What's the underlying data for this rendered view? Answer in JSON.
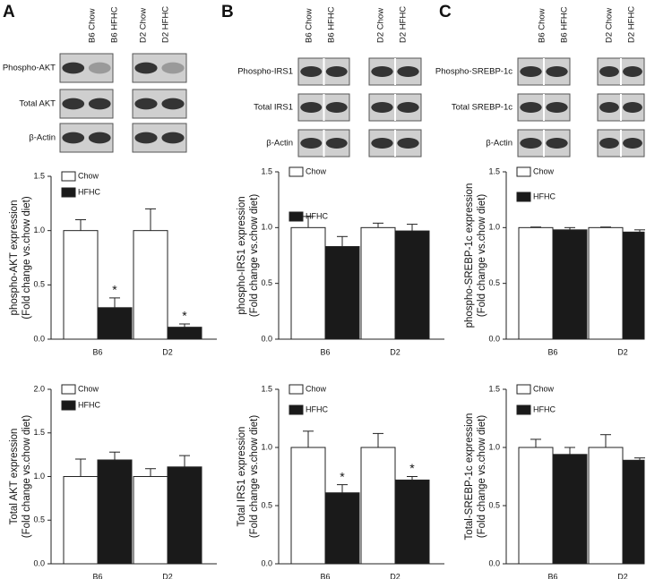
{
  "panels": [
    {
      "letter": "A",
      "lanes": [
        "B6 Chow",
        "B6 HFHC",
        "D2 Chow",
        "D2 HFHC"
      ],
      "blots": [
        "Phospho-AKT",
        "Total AKT",
        "β-Actin"
      ]
    },
    {
      "letter": "B",
      "lanes": [
        "B6 Chow",
        "B6 HFHC",
        "D2 Chow",
        "D2 HFHC"
      ],
      "blots": [
        "Phospho-IRS1",
        "Total IRS1",
        "β-Actin"
      ]
    },
    {
      "letter": "C",
      "lanes": [
        "B6 Chow",
        "B6 HFHC",
        "D2 Chow",
        "D2 HFHC"
      ],
      "blots": [
        "Phospho-SREBP-1c",
        "Total SREBP-1c",
        "β-Actin"
      ]
    }
  ],
  "chart_data": [
    {
      "type": "bar",
      "ylabel": [
        "phospho-AKT expression",
        "(Fold change vs.chow diet)"
      ],
      "categories": [
        "B6",
        "D2"
      ],
      "series": [
        {
          "name": "Chow",
          "color": "#ffffff",
          "values": [
            1.0,
            1.0
          ],
          "errors": [
            0.1,
            0.2
          ]
        },
        {
          "name": "HFHC",
          "color": "#1a1a1a",
          "values": [
            0.29,
            0.11
          ],
          "errors": [
            0.09,
            0.03
          ],
          "markers": [
            "*",
            "*"
          ]
        }
      ],
      "ylim": [
        0,
        1.5
      ],
      "yticks": [
        {
          "value": 0,
          "label": "0.0"
        },
        0.5,
        {
          "value": 1,
          "label": "1.0"
        },
        1.5
      ]
    },
    {
      "type": "bar",
      "ylabel": [
        "Total AKT expression",
        "(Fold change vs.chow diet)"
      ],
      "categories": [
        "B6",
        "D2"
      ],
      "series": [
        {
          "name": "Chow",
          "color": "#ffffff",
          "values": [
            1.0,
            1.0
          ],
          "errors": [
            0.2,
            0.09
          ]
        },
        {
          "name": "HFHC",
          "color": "#1a1a1a",
          "values": [
            1.19,
            1.11
          ],
          "errors": [
            0.09,
            0.13
          ]
        }
      ],
      "ylim": [
        0,
        2
      ],
      "yticks": [
        {
          "value": 0,
          "label": "0.0"
        },
        0.5,
        {
          "value": 1,
          "label": "1.0"
        },
        1.5,
        {
          "value": 2,
          "label": "2.0"
        }
      ]
    },
    {
      "type": "bar",
      "ylabel": [
        "phospho-IRS1 expression",
        "(Fold change vs.chow diet)"
      ],
      "categories": [
        "B6",
        "D2"
      ],
      "series": [
        {
          "name": "Chow",
          "color": "#ffffff",
          "values": [
            1.0,
            1.0
          ],
          "errors": [
            0.1,
            0.04
          ]
        },
        {
          "name": "HFHC",
          "color": "#1a1a1a",
          "values": [
            0.83,
            0.97
          ],
          "errors": [
            0.09,
            0.06
          ]
        }
      ],
      "ylim": [
        0,
        1.5
      ],
      "yticks": [
        {
          "value": 0,
          "label": "0.0"
        },
        0.5,
        {
          "value": 1,
          "label": "1.0"
        },
        1.5
      ]
    },
    {
      "type": "bar",
      "ylabel": [
        "Total IRS1 expression",
        "(Fold change vs.chow diet)"
      ],
      "categories": [
        "B6",
        "D2"
      ],
      "series": [
        {
          "name": "Chow",
          "color": "#ffffff",
          "values": [
            1.0,
            1.0
          ],
          "errors": [
            0.14,
            0.12
          ]
        },
        {
          "name": "HFHC",
          "color": "#1a1a1a",
          "values": [
            0.61,
            0.72
          ],
          "errors": [
            0.07,
            0.03
          ],
          "markers": [
            "*",
            "*"
          ]
        }
      ],
      "ylim": [
        0,
        1.5
      ],
      "yticks": [
        {
          "value": 0,
          "label": "0.0"
        },
        0.5,
        {
          "value": 1,
          "label": "1.0"
        },
        1.5
      ]
    },
    {
      "type": "bar",
      "ylabel": [
        "phospho-SREBP-1c expression",
        "(Fold change vs.chow diet)"
      ],
      "categories": [
        "B6",
        "D2"
      ],
      "series": [
        {
          "name": "Chow",
          "color": "#ffffff",
          "values": [
            1.0,
            1.0
          ],
          "errors": [
            0.005,
            0.005
          ]
        },
        {
          "name": "HFHC",
          "color": "#1a1a1a",
          "values": [
            0.98,
            0.96
          ],
          "errors": [
            0.02,
            0.02
          ]
        }
      ],
      "ylim": [
        0,
        1.5
      ],
      "yticks": [
        {
          "value": 0,
          "label": "0.0"
        },
        0.5,
        {
          "value": 1,
          "label": "1.0"
        },
        1.5
      ]
    },
    {
      "type": "bar",
      "ylabel": [
        "Total-SREBP-1c expression",
        "(Fold change vs.chow diet)"
      ],
      "categories": [
        "B6",
        "D2"
      ],
      "series": [
        {
          "name": "Chow",
          "color": "#ffffff",
          "values": [
            1.0,
            1.0
          ],
          "errors": [
            0.07,
            0.11
          ]
        },
        {
          "name": "HFHC",
          "color": "#1a1a1a",
          "values": [
            0.94,
            0.89
          ],
          "errors": [
            0.06,
            0.02
          ]
        }
      ],
      "ylim": [
        0,
        1.5
      ],
      "yticks": [
        {
          "value": 0,
          "label": "0.0"
        },
        0.5,
        {
          "value": 1,
          "label": "1.0"
        },
        1.5
      ]
    }
  ]
}
